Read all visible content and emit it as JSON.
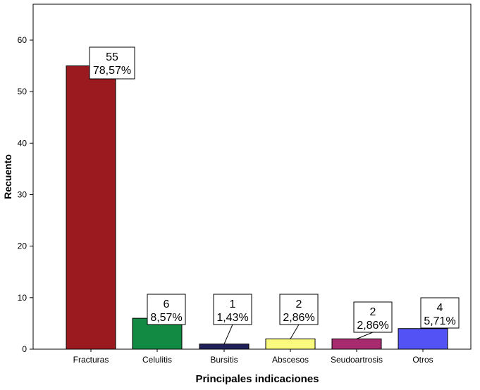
{
  "chart_data": {
    "type": "bar",
    "xlabel": "Principales indicaciones",
    "ylabel": "Recuento",
    "ylim": [
      0,
      65
    ],
    "yticks": [
      0,
      10,
      20,
      30,
      40,
      50,
      60
    ],
    "grid": false,
    "categories": [
      "Fracturas",
      "Celulitis",
      "Bursitis",
      "Abscesos",
      "Seudoartrosis",
      "Otros"
    ],
    "values": [
      55,
      6,
      1,
      2,
      2,
      4
    ],
    "colors": [
      "#9b1a1f",
      "#138a44",
      "#20215b",
      "#fafa7e",
      "#a72c6f",
      "#5252f5"
    ],
    "data_labels": [
      {
        "count": "55",
        "percent": "78,57%"
      },
      {
        "count": "6",
        "percent": "8,57%"
      },
      {
        "count": "1",
        "percent": "1,43%"
      },
      {
        "count": "2",
        "percent": "2,86%"
      },
      {
        "count": "2",
        "percent": "2,86%"
      },
      {
        "count": "4",
        "percent": "5,71%"
      }
    ]
  }
}
